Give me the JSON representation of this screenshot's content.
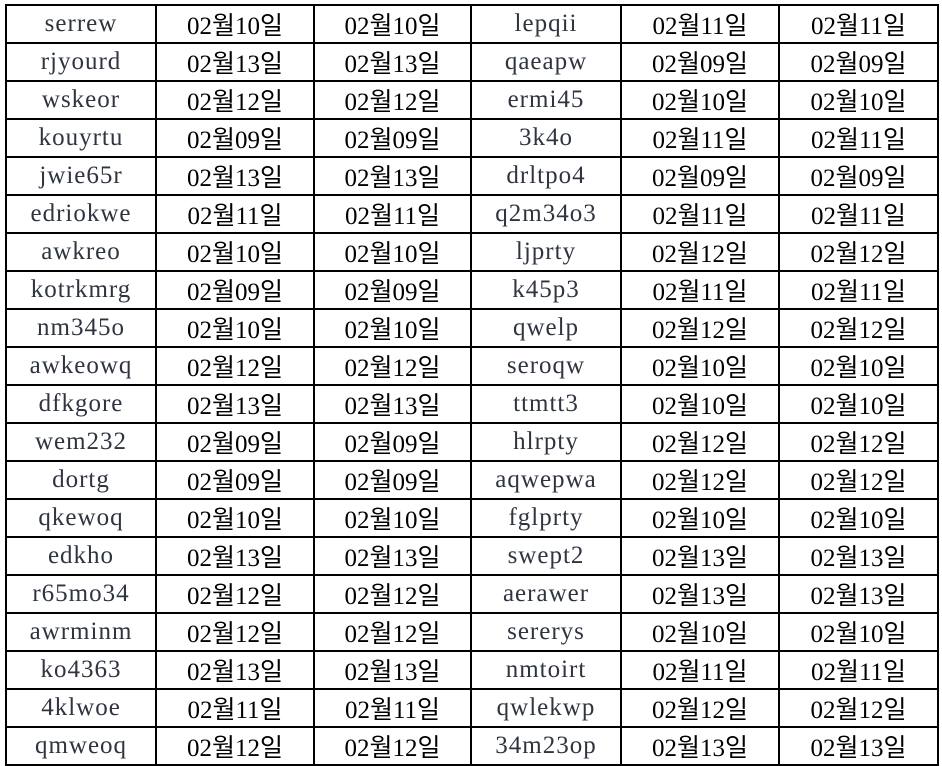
{
  "rows": [
    [
      "serrew",
      "02월10일",
      "02월10일",
      "lepqii",
      "02월11일",
      "02월11일"
    ],
    [
      "rjyourd",
      "02월13일",
      "02월13일",
      "qaeapw",
      "02월09일",
      "02월09일"
    ],
    [
      "wskeor",
      "02월12일",
      "02월12일",
      "ermi45",
      "02월10일",
      "02월10일"
    ],
    [
      "kouyrtu",
      "02월09일",
      "02월09일",
      "3k4o",
      "02월11일",
      "02월11일"
    ],
    [
      "jwie65r",
      "02월13일",
      "02월13일",
      "drltpo4",
      "02월09일",
      "02월09일"
    ],
    [
      "edriokwe",
      "02월11일",
      "02월11일",
      "q2m34o3",
      "02월11일",
      "02월11일"
    ],
    [
      "awkreo",
      "02월10일",
      "02월10일",
      "ljprty",
      "02월12일",
      "02월12일"
    ],
    [
      "kotrkmrg",
      "02월09일",
      "02월09일",
      "k45p3",
      "02월11일",
      "02월11일"
    ],
    [
      "nm345o",
      "02월10일",
      "02월10일",
      "qwelp",
      "02월12일",
      "02월12일"
    ],
    [
      "awkeowq",
      "02월12일",
      "02월12일",
      "seroqw",
      "02월10일",
      "02월10일"
    ],
    [
      "dfkgore",
      "02월13일",
      "02월13일",
      "ttmtt3",
      "02월10일",
      "02월10일"
    ],
    [
      "wem232",
      "02월09일",
      "02월09일",
      "hlrpty",
      "02월12일",
      "02월12일"
    ],
    [
      "dortg",
      "02월09일",
      "02월09일",
      "aqwepwa",
      "02월12일",
      "02월12일"
    ],
    [
      "qkewoq",
      "02월10일",
      "02월10일",
      "fglprty",
      "02월10일",
      "02월10일"
    ],
    [
      "edkho",
      "02월13일",
      "02월13일",
      "swept2",
      "02월13일",
      "02월13일"
    ],
    [
      "r65mo34",
      "02월12일",
      "02월12일",
      "aerawer",
      "02월13일",
      "02월13일"
    ],
    [
      "awrminm",
      "02월12일",
      "02월12일",
      "sererys",
      "02월10일",
      "02월10일"
    ],
    [
      "ko4363",
      "02월13일",
      "02월13일",
      "nmtoirt",
      "02월11일",
      "02월11일"
    ],
    [
      "4klwoe",
      "02월11일",
      "02월11일",
      "qwlekwp",
      "02월12일",
      "02월12일"
    ],
    [
      "qmweoq",
      "02월12일",
      "02월12일",
      "34m23op",
      "02월13일",
      "02월13일"
    ]
  ]
}
